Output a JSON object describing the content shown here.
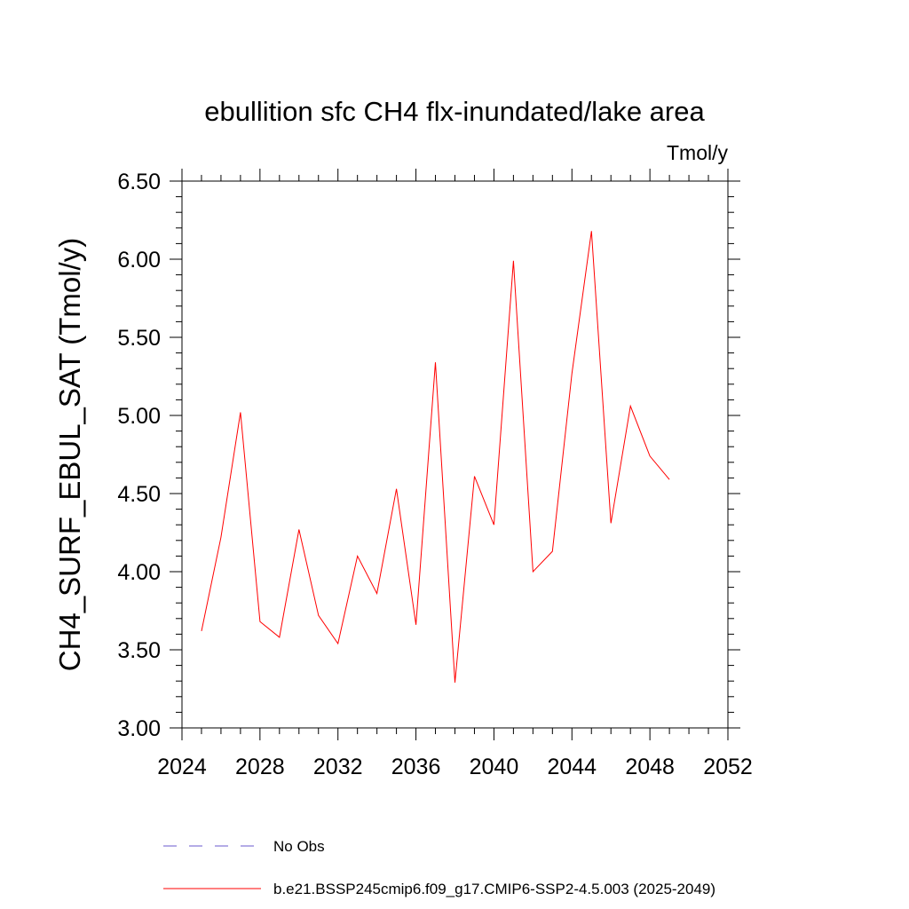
{
  "chart_data": {
    "type": "line",
    "title": "ebullition sfc CH4 flx-inundated/lake area",
    "units_label": "Tmol/y",
    "ylabel": "CH4_SURF_EBUL_SAT  (Tmol/y)",
    "xlabel": "",
    "xlim": [
      2024,
      2052
    ],
    "ylim": [
      3.0,
      6.5
    ],
    "x_ticks": [
      2024,
      2028,
      2032,
      2036,
      2040,
      2044,
      2048,
      2052
    ],
    "x_tick_labels": [
      "2024",
      "2028",
      "2032",
      "2036",
      "2040",
      "2044",
      "2048",
      "2052"
    ],
    "y_ticks": [
      3.0,
      3.5,
      4.0,
      4.5,
      5.0,
      5.5,
      6.0,
      6.5
    ],
    "y_tick_labels": [
      "3.00",
      "3.50",
      "4.00",
      "4.50",
      "5.00",
      "5.50",
      "6.00",
      "6.50"
    ],
    "grid": false,
    "legend_position": "bottom",
    "series": [
      {
        "name": "b.e21.BSSP245cmip6.f09_g17.CMIP6-SSP2-4.5.003 (2025-2049)",
        "color": "#ff0000",
        "dash": "solid",
        "x": [
          2025,
          2026,
          2027,
          2028,
          2029,
          2030,
          2031,
          2032,
          2033,
          2034,
          2035,
          2036,
          2037,
          2038,
          2039,
          2040,
          2041,
          2042,
          2043,
          2044,
          2045,
          2046,
          2047,
          2048,
          2049
        ],
        "values": [
          3.62,
          4.22,
          5.02,
          3.68,
          3.58,
          4.27,
          3.72,
          3.54,
          4.1,
          3.86,
          4.53,
          3.66,
          5.34,
          3.29,
          4.61,
          4.3,
          5.99,
          4.0,
          4.13,
          5.27,
          6.18,
          4.31,
          5.06,
          4.74,
          4.59
        ]
      }
    ],
    "legend": [
      {
        "label": "No Obs",
        "color": "#6a5acd",
        "dash": "dashed"
      },
      {
        "label": "b.e21.BSSP245cmip6.f09_g17.CMIP6-SSP2-4.5.003 (2025-2049)",
        "color": "#ff0000",
        "dash": "solid"
      }
    ]
  }
}
